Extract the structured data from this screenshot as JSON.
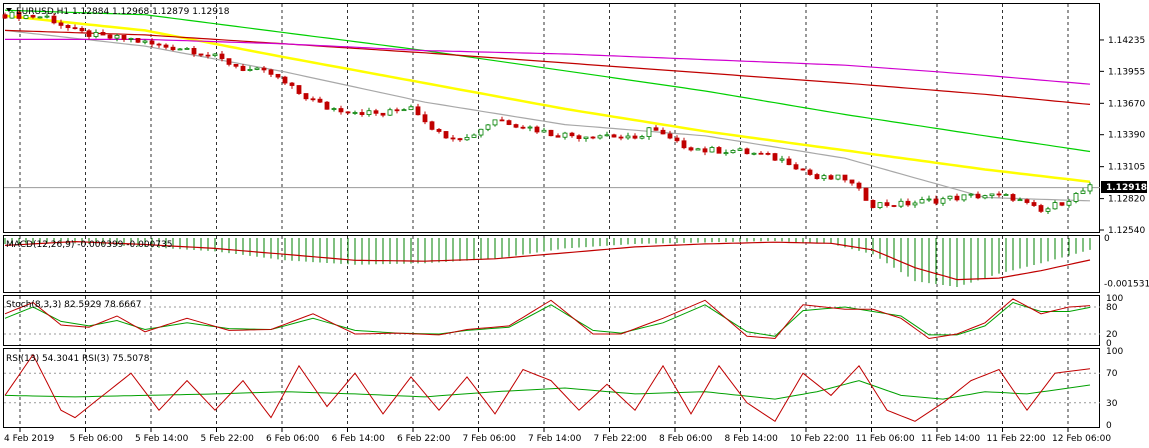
{
  "window": {
    "symbol_header": "EURUSD,H1  1.12884 1.12968 1.12879 1.12918",
    "macd_header": "MACD(12,26,9) -0.000399 -0.000735",
    "stoch_header": "Stoch(8,3,3) 82.5929 78.6667",
    "rsi_header": "RSI(13) 54.3041  RSI(3) 75.5078",
    "current_price_label": "1.12918"
  },
  "colors": {
    "bull": "#008000",
    "bear": "#c00000",
    "ma_gray": "#a8a8a8",
    "ma_yellow": "#ffff00",
    "ma_green": "#00d000",
    "ma_red": "#c00000",
    "ma_magenta": "#d000d0",
    "macd_hist": "#008000",
    "macd_signal": "#c00000",
    "osc_main": "#c00000",
    "osc_signal": "#00a000"
  },
  "chart_data": [
    {
      "type": "candlestick",
      "symbol": "EURUSD",
      "timeframe": "H1",
      "ylim": [
        1.1254,
        1.1452
      ],
      "y_ticks": [
        "1.14235",
        "1.13955",
        "1.13670",
        "1.13390",
        "1.13105",
        "1.12820",
        "1.12540"
      ],
      "x_ticks": [
        "4 Feb 2019",
        "5 Feb 06:00",
        "5 Feb 14:00",
        "5 Feb 22:00",
        "6 Feb 06:00",
        "6 Feb 14:00",
        "6 Feb 22:00",
        "7 Feb 06:00",
        "7 Feb 14:00",
        "7 Feb 22:00",
        "8 Feb 06:00",
        "8 Feb 14:00",
        "10 Feb 22:00",
        "11 Feb 06:00",
        "11 Feb 14:00",
        "11 Feb 22:00",
        "12 Feb 06:00"
      ],
      "close_path": [
        [
          0,
          1.1446
        ],
        [
          6,
          1.1444
        ],
        [
          10,
          1.1431
        ],
        [
          14,
          1.1426
        ],
        [
          18,
          1.1424
        ],
        [
          22,
          1.1418
        ],
        [
          26,
          1.1416
        ],
        [
          30,
          1.1408
        ],
        [
          34,
          1.1398
        ],
        [
          38,
          1.1393
        ],
        [
          42,
          1.1376
        ],
        [
          46,
          1.1363
        ],
        [
          50,
          1.136
        ],
        [
          54,
          1.1357
        ],
        [
          58,
          1.1365
        ],
        [
          62,
          1.134
        ],
        [
          66,
          1.1336
        ],
        [
          70,
          1.1353
        ],
        [
          74,
          1.1347
        ],
        [
          78,
          1.134
        ],
        [
          82,
          1.1338
        ],
        [
          86,
          1.1339
        ],
        [
          90,
          1.1334
        ],
        [
          92,
          1.1345
        ],
        [
          96,
          1.1331
        ],
        [
          100,
          1.1325
        ],
        [
          104,
          1.1325
        ],
        [
          108,
          1.1321
        ],
        [
          112,
          1.1315
        ],
        [
          116,
          1.13
        ],
        [
          120,
          1.13
        ],
        [
          124,
          1.1277
        ],
        [
          128,
          1.1277
        ],
        [
          132,
          1.128
        ],
        [
          136,
          1.1283
        ],
        [
          140,
          1.1285
        ],
        [
          144,
          1.1283
        ],
        [
          148,
          1.127
        ],
        [
          152,
          1.1282
        ],
        [
          155,
          1.1292
        ]
      ],
      "moving_averages": [
        {
          "color": "gray",
          "points": [
            [
              0,
              1.1432
            ],
            [
              20,
              1.1418
            ],
            [
              40,
              1.1395
            ],
            [
              60,
              1.1368
            ],
            [
              80,
              1.1348
            ],
            [
              100,
              1.1338
            ],
            [
              120,
              1.1318
            ],
            [
              140,
              1.1283
            ],
            [
              155,
              1.128
            ]
          ]
        },
        {
          "color": "yellow",
          "points": [
            [
              0,
              1.1445
            ],
            [
              20,
              1.1432
            ],
            [
              40,
              1.1408
            ],
            [
              60,
              1.1385
            ],
            [
              80,
              1.1362
            ],
            [
              100,
              1.1342
            ],
            [
              120,
              1.1325
            ],
            [
              140,
              1.1308
            ],
            [
              155,
              1.1297
            ]
          ]
        },
        {
          "color": "green",
          "points": [
            [
              0,
              1.145
            ],
            [
              20,
              1.1446
            ],
            [
              40,
              1.143
            ],
            [
              60,
              1.1414
            ],
            [
              80,
              1.1396
            ],
            [
              100,
              1.1378
            ],
            [
              120,
              1.1357
            ],
            [
              140,
              1.1338
            ],
            [
              155,
              1.1324
            ]
          ]
        },
        {
          "color": "red",
          "points": [
            [
              0,
              1.1432
            ],
            [
              20,
              1.1428
            ],
            [
              40,
              1.142
            ],
            [
              60,
              1.1412
            ],
            [
              80,
              1.1403
            ],
            [
              100,
              1.1394
            ],
            [
              120,
              1.1385
            ],
            [
              140,
              1.1375
            ],
            [
              155,
              1.1366
            ]
          ]
        },
        {
          "color": "magenta",
          "points": [
            [
              0,
              1.1424
            ],
            [
              20,
              1.1424
            ],
            [
              40,
              1.142
            ],
            [
              60,
              1.1414
            ],
            [
              80,
              1.1411
            ],
            [
              100,
              1.1406
            ],
            [
              120,
              1.1401
            ],
            [
              140,
              1.1392
            ],
            [
              155,
              1.1384
            ]
          ]
        }
      ]
    },
    {
      "type": "bar",
      "name": "MACD(12,26,9)",
      "ylim": [
        -0.00175,
        0.0
      ],
      "y_ticks": [
        "0",
        "-0.001531"
      ],
      "histogram_path": [
        [
          0,
          -0.0002
        ],
        [
          10,
          -0.00018
        ],
        [
          20,
          -0.0003
        ],
        [
          30,
          -0.00045
        ],
        [
          40,
          -0.00075
        ],
        [
          50,
          -0.0009
        ],
        [
          60,
          -0.00085
        ],
        [
          70,
          -0.0007
        ],
        [
          80,
          -0.00035
        ],
        [
          90,
          -0.0002
        ],
        [
          100,
          -0.00015
        ],
        [
          110,
          -0.0001
        ],
        [
          118,
          -0.0002
        ],
        [
          124,
          -0.00055
        ],
        [
          130,
          -0.00145
        ],
        [
          136,
          -0.00165
        ],
        [
          142,
          -0.0012
        ],
        [
          148,
          -0.00085
        ],
        [
          155,
          -0.0004
        ]
      ],
      "signal_path": [
        [
          0,
          -0.00025
        ],
        [
          10,
          -0.00012
        ],
        [
          20,
          -0.00022
        ],
        [
          30,
          -0.00035
        ],
        [
          40,
          -0.00055
        ],
        [
          50,
          -0.00075
        ],
        [
          60,
          -0.00078
        ],
        [
          70,
          -0.0007
        ],
        [
          80,
          -0.0005
        ],
        [
          90,
          -0.0003
        ],
        [
          100,
          -0.0002
        ],
        [
          110,
          -0.00014
        ],
        [
          118,
          -0.00018
        ],
        [
          124,
          -0.0004
        ],
        [
          130,
          -0.001
        ],
        [
          136,
          -0.0014
        ],
        [
          142,
          -0.00135
        ],
        [
          148,
          -0.0011
        ],
        [
          155,
          -0.00074
        ]
      ]
    },
    {
      "type": "line",
      "name": "Stoch(8,3,3)",
      "ylim": [
        0,
        100
      ],
      "y_ticks": [
        "100",
        "80",
        "20",
        "0"
      ],
      "main_path": [
        [
          0,
          65
        ],
        [
          4,
          90
        ],
        [
          8,
          40
        ],
        [
          12,
          35
        ],
        [
          16,
          60
        ],
        [
          20,
          25
        ],
        [
          26,
          55
        ],
        [
          32,
          28
        ],
        [
          38,
          30
        ],
        [
          44,
          65
        ],
        [
          50,
          20
        ],
        [
          56,
          22
        ],
        [
          62,
          18
        ],
        [
          66,
          30
        ],
        [
          72,
          38
        ],
        [
          78,
          95
        ],
        [
          84,
          20
        ],
        [
          88,
          20
        ],
        [
          94,
          55
        ],
        [
          100,
          95
        ],
        [
          106,
          15
        ],
        [
          110,
          10
        ],
        [
          114,
          85
        ],
        [
          120,
          75
        ],
        [
          124,
          75
        ],
        [
          128,
          55
        ],
        [
          132,
          10
        ],
        [
          136,
          20
        ],
        [
          140,
          45
        ],
        [
          144,
          98
        ],
        [
          148,
          65
        ],
        [
          152,
          80
        ],
        [
          155,
          83
        ]
      ],
      "signal_path": [
        [
          0,
          55
        ],
        [
          4,
          80
        ],
        [
          8,
          48
        ],
        [
          12,
          38
        ],
        [
          16,
          50
        ],
        [
          20,
          30
        ],
        [
          26,
          45
        ],
        [
          32,
          32
        ],
        [
          38,
          30
        ],
        [
          44,
          55
        ],
        [
          50,
          28
        ],
        [
          56,
          22
        ],
        [
          62,
          20
        ],
        [
          66,
          28
        ],
        [
          72,
          35
        ],
        [
          78,
          85
        ],
        [
          84,
          28
        ],
        [
          88,
          22
        ],
        [
          94,
          45
        ],
        [
          100,
          85
        ],
        [
          106,
          25
        ],
        [
          110,
          15
        ],
        [
          114,
          72
        ],
        [
          120,
          80
        ],
        [
          124,
          70
        ],
        [
          128,
          60
        ],
        [
          132,
          18
        ],
        [
          136,
          18
        ],
        [
          140,
          38
        ],
        [
          144,
          90
        ],
        [
          148,
          70
        ],
        [
          152,
          70
        ],
        [
          155,
          79
        ]
      ]
    },
    {
      "type": "line",
      "name": "RSI(13) / RSI(3)",
      "ylim": [
        0,
        100
      ],
      "y_ticks": [
        "100",
        "70",
        "30",
        "0"
      ],
      "rsi3_path": [
        [
          0,
          40
        ],
        [
          4,
          95
        ],
        [
          8,
          20
        ],
        [
          10,
          10
        ],
        [
          14,
          40
        ],
        [
          18,
          70
        ],
        [
          22,
          20
        ],
        [
          26,
          60
        ],
        [
          30,
          20
        ],
        [
          34,
          60
        ],
        [
          38,
          10
        ],
        [
          42,
          80
        ],
        [
          46,
          25
        ],
        [
          50,
          70
        ],
        [
          54,
          15
        ],
        [
          58,
          65
        ],
        [
          62,
          20
        ],
        [
          66,
          65
        ],
        [
          70,
          15
        ],
        [
          74,
          75
        ],
        [
          78,
          60
        ],
        [
          82,
          20
        ],
        [
          86,
          55
        ],
        [
          90,
          20
        ],
        [
          94,
          80
        ],
        [
          98,
          15
        ],
        [
          102,
          80
        ],
        [
          106,
          30
        ],
        [
          110,
          5
        ],
        [
          114,
          70
        ],
        [
          118,
          40
        ],
        [
          122,
          80
        ],
        [
          126,
          20
        ],
        [
          130,
          5
        ],
        [
          134,
          30
        ],
        [
          138,
          60
        ],
        [
          142,
          75
        ],
        [
          146,
          20
        ],
        [
          150,
          70
        ],
        [
          155,
          76
        ]
      ],
      "rsi13_path": [
        [
          0,
          40
        ],
        [
          10,
          38
        ],
        [
          20,
          40
        ],
        [
          30,
          42
        ],
        [
          40,
          45
        ],
        [
          50,
          42
        ],
        [
          60,
          38
        ],
        [
          70,
          45
        ],
        [
          80,
          50
        ],
        [
          90,
          42
        ],
        [
          100,
          45
        ],
        [
          110,
          35
        ],
        [
          116,
          45
        ],
        [
          122,
          60
        ],
        [
          128,
          40
        ],
        [
          134,
          35
        ],
        [
          140,
          45
        ],
        [
          146,
          42
        ],
        [
          155,
          54
        ]
      ]
    }
  ]
}
